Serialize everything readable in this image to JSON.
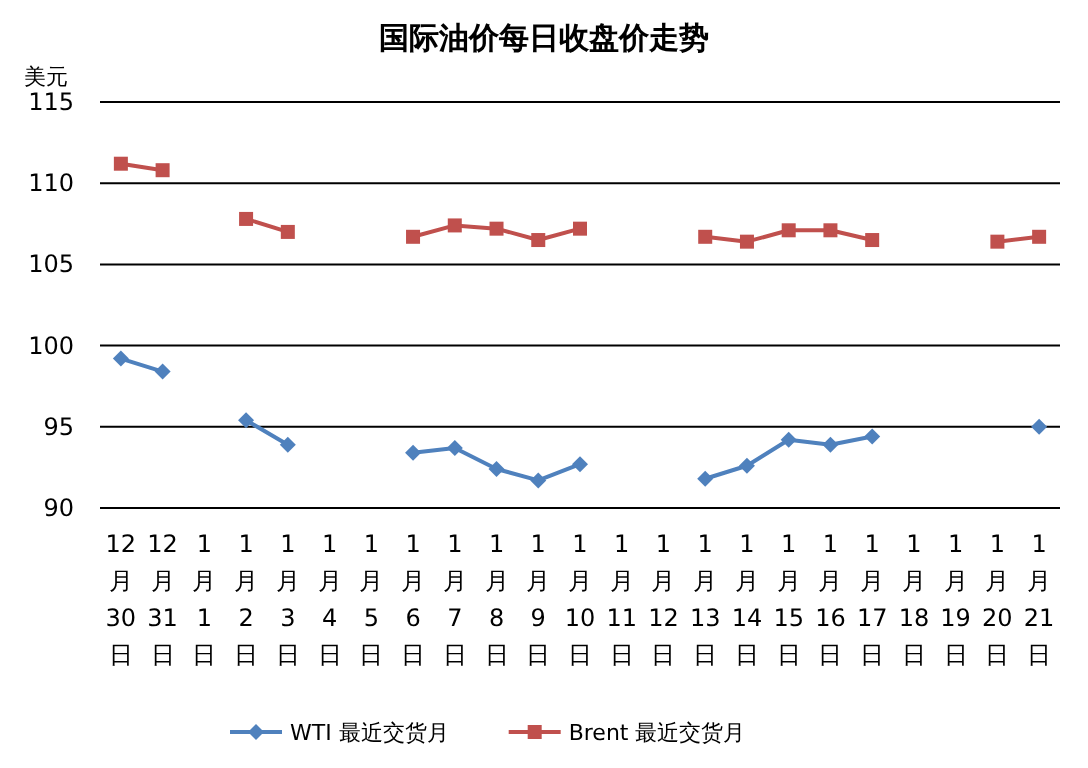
{
  "chart_data": {
    "type": "line",
    "title": "国际油价每日收盘价走势",
    "ylabel": "美元",
    "categories": [
      "12月30日",
      "12月31日",
      "1月1日",
      "1月2日",
      "1月3日",
      "1月4日",
      "1月5日",
      "1月6日",
      "1月7日",
      "1月8日",
      "1月9日",
      "1月10日",
      "1月11日",
      "1月12日",
      "1月13日",
      "1月14日",
      "1月15日",
      "1月16日",
      "1月17日",
      "1月18日",
      "1月19日",
      "1月20日",
      "1月21日"
    ],
    "series": [
      {
        "name": "WTI 最近交货月",
        "color": "#4f81bd",
        "marker": "diamond",
        "values": [
          99.2,
          98.4,
          null,
          95.4,
          93.9,
          null,
          null,
          93.4,
          93.7,
          92.4,
          91.7,
          92.7,
          null,
          null,
          91.8,
          92.6,
          94.2,
          93.9,
          94.4,
          null,
          null,
          null,
          95.0
        ]
      },
      {
        "name": "Brent 最近交货月",
        "color": "#c0504d",
        "marker": "square",
        "values": [
          111.2,
          110.8,
          null,
          107.8,
          107.0,
          null,
          null,
          106.7,
          107.4,
          107.2,
          106.5,
          107.2,
          null,
          null,
          106.7,
          106.4,
          107.1,
          107.1,
          106.5,
          null,
          null,
          106.4,
          106.7
        ]
      }
    ],
    "ylim": [
      90,
      115
    ],
    "yticks": [
      90,
      95,
      100,
      105,
      110,
      115
    ],
    "grid": "y",
    "legend": "bottom"
  }
}
